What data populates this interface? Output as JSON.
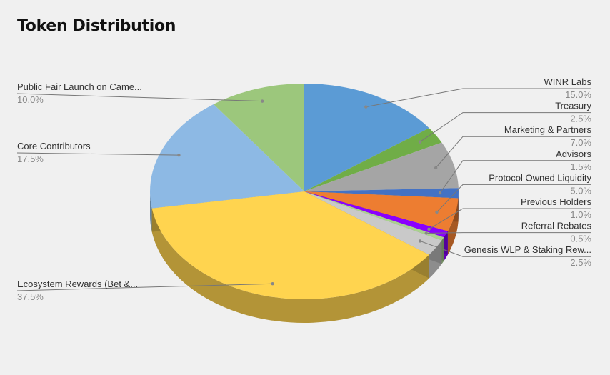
{
  "title": "Token Distribution",
  "chart_data": {
    "type": "pie",
    "three_d": true,
    "slices": [
      {
        "label": "WINR Labs",
        "display_label": "WINR Labs",
        "value": 15.0,
        "value_text": "15.0%",
        "color": "#5b9bd5",
        "side": "right"
      },
      {
        "label": "Treasury",
        "display_label": "Treasury",
        "value": 2.5,
        "value_text": "2.5%",
        "color": "#70ad47",
        "side": "right"
      },
      {
        "label": "Marketing & Partners",
        "display_label": "Marketing & Partners",
        "value": 7.0,
        "value_text": "7.0%",
        "color": "#a5a5a5",
        "side": "right"
      },
      {
        "label": "Advisors",
        "display_label": "Advisors",
        "value": 1.5,
        "value_text": "1.5%",
        "color": "#4472c4",
        "side": "right"
      },
      {
        "label": "Protocol Owned Liquidity",
        "display_label": "Protocol Owned Liquidity",
        "value": 5.0,
        "value_text": "5.0%",
        "color": "#ed7d31",
        "side": "right"
      },
      {
        "label": "Previous Holders",
        "display_label": "Previous Holders",
        "value": 1.0,
        "value_text": "1.0%",
        "color": "#8a00ff",
        "side": "right"
      },
      {
        "label": "Referral Rebates",
        "display_label": "Referral Rebates",
        "value": 0.5,
        "value_text": "0.5%",
        "color": "#a9d18e",
        "side": "right"
      },
      {
        "label": "Genesis WLP & Staking Rewards",
        "display_label": "Genesis WLP & Staking Rew...",
        "value": 2.5,
        "value_text": "2.5%",
        "color": "#c9c9c9",
        "side": "right"
      },
      {
        "label": "Ecosystem Rewards (Bet & ...",
        "display_label": "Ecosystem Rewards (Bet &...",
        "value": 37.5,
        "value_text": "37.5%",
        "color": "#ffd44f",
        "side": "left"
      },
      {
        "label": "Core Contributors",
        "display_label": "Core Contributors",
        "value": 17.5,
        "value_text": "17.5%",
        "color": "#8db9e4",
        "side": "left"
      },
      {
        "label": "Public Fair Launch on Camelot",
        "display_label": "Public Fair Launch on Came...",
        "value": 10.0,
        "value_text": "10.0%",
        "color": "#9cc77c",
        "side": "left"
      }
    ]
  }
}
